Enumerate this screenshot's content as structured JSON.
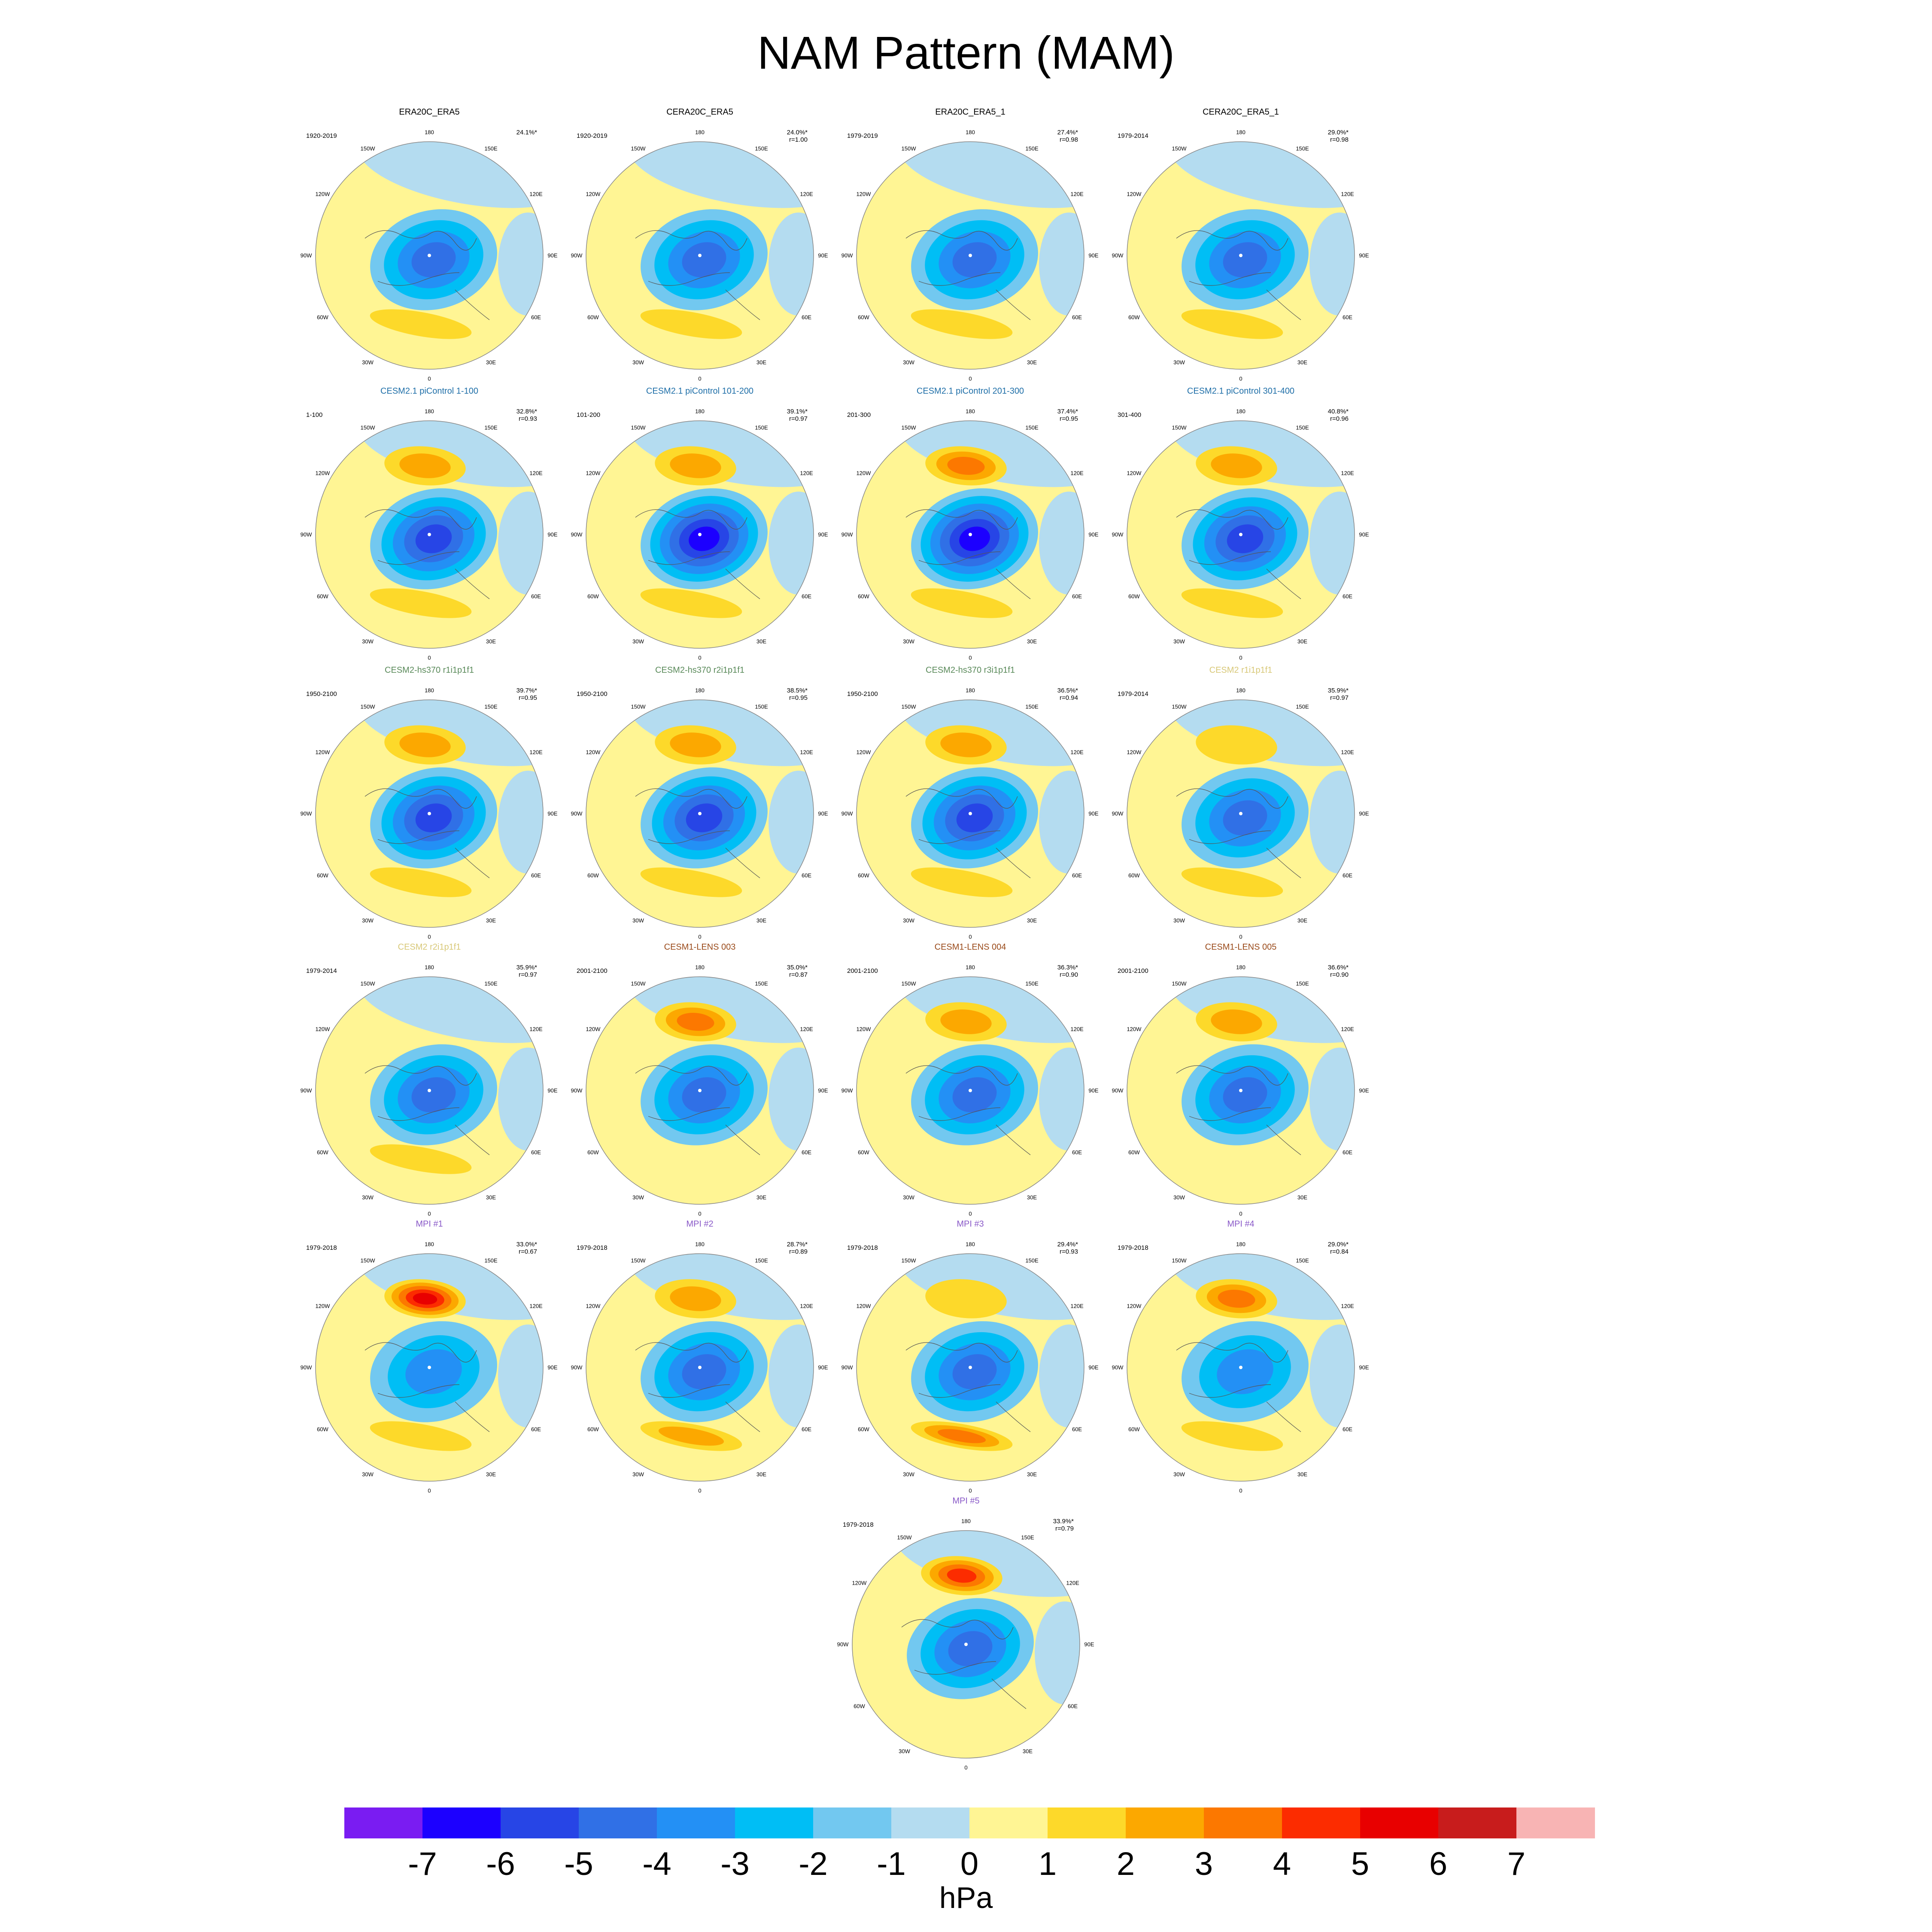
{
  "title": "NAM Pattern (MAM)",
  "units": "hPa",
  "colorbar": {
    "ticks": [
      "-7",
      "-6",
      "-5",
      "-4",
      "-3",
      "-2",
      "-1",
      "0",
      "1",
      "2",
      "3",
      "4",
      "5",
      "6",
      "7"
    ],
    "colors": [
      "#7a1cf2",
      "#1c00ff",
      "#2745e6",
      "#3070e6",
      "#2390f5",
      "#00bef5",
      "#72c8f0",
      "#b4dcf0",
      "#fff594",
      "#fdd92a",
      "#fca800",
      "#fc7800",
      "#fc2c00",
      "#e80000",
      "#c81c1c",
      "#f8b4b4"
    ]
  },
  "lon_labels": [
    "180",
    "150E",
    "120E",
    "90E",
    "60E",
    "30E",
    "0",
    "30W",
    "60W",
    "90W",
    "120W",
    "150W"
  ],
  "panels": [
    {
      "title": "ERA20C_ERA5",
      "title_color": "#000000",
      "period": "1920-2019",
      "pct": "24.1%*",
      "r": ""
    },
    {
      "title": "CERA20C_ERA5",
      "title_color": "#000000",
      "period": "1920-2019",
      "pct": "24.0%*",
      "r": "r=1.00"
    },
    {
      "title": "ERA20C_ERA5_1",
      "title_color": "#000000",
      "period": "1979-2019",
      "pct": "27.4%*",
      "r": "r=0.98"
    },
    {
      "title": "CERA20C_ERA5_1",
      "title_color": "#000000",
      "period": "1979-2014",
      "pct": "29.0%*",
      "r": "r=0.98"
    },
    {
      "title": "CESM2.1 piControl 1-100",
      "title_color": "#1f6fa8",
      "period": "1-100",
      "pct": "32.8%*",
      "r": "r=0.93"
    },
    {
      "title": "CESM2.1 piControl 101-200",
      "title_color": "#1f6fa8",
      "period": "101-200",
      "pct": "39.1%*",
      "r": "r=0.97"
    },
    {
      "title": "CESM2.1 piControl 201-300",
      "title_color": "#1f6fa8",
      "period": "201-300",
      "pct": "37.4%*",
      "r": "r=0.95"
    },
    {
      "title": "CESM2.1 piControl 301-400",
      "title_color": "#1f6fa8",
      "period": "301-400",
      "pct": "40.8%*",
      "r": "r=0.96"
    },
    {
      "title": "CESM2-hs370 r1i1p1f1",
      "title_color": "#5a8a5a",
      "period": "1950-2100",
      "pct": "39.7%*",
      "r": "r=0.95"
    },
    {
      "title": "CESM2-hs370 r2i1p1f1",
      "title_color": "#5a8a5a",
      "period": "1950-2100",
      "pct": "38.5%*",
      "r": "r=0.95"
    },
    {
      "title": "CESM2-hs370 r3i1p1f1",
      "title_color": "#5a8a5a",
      "period": "1950-2100",
      "pct": "36.5%*",
      "r": "r=0.94"
    },
    {
      "title": "CESM2 r1i1p1f1",
      "title_color": "#d8c878",
      "period": "1979-2014",
      "pct": "35.9%*",
      "r": "r=0.97"
    },
    {
      "title": "CESM2 r2i1p1f1",
      "title_color": "#d8c878",
      "period": "1979-2014",
      "pct": "35.9%*",
      "r": "r=0.97"
    },
    {
      "title": "CESM1-LENS 003",
      "title_color": "#9a4a1a",
      "period": "2001-2100",
      "pct": "35.0%*",
      "r": "r=0.87"
    },
    {
      "title": "CESM1-LENS 004",
      "title_color": "#9a4a1a",
      "period": "2001-2100",
      "pct": "36.3%*",
      "r": "r=0.90"
    },
    {
      "title": "CESM1-LENS 005",
      "title_color": "#9a4a1a",
      "period": "2001-2100",
      "pct": "36.6%*",
      "r": "r=0.90"
    },
    {
      "title": "MPI #1",
      "title_color": "#8a5ac8",
      "period": "1979-2018",
      "pct": "33.0%*",
      "r": "r=0.67"
    },
    {
      "title": "MPI #2",
      "title_color": "#8a5ac8",
      "period": "1979-2018",
      "pct": "28.7%*",
      "r": "r=0.89"
    },
    {
      "title": "MPI #3",
      "title_color": "#8a5ac8",
      "period": "1979-2018",
      "pct": "29.4%*",
      "r": "r=0.93"
    },
    {
      "title": "MPI #4",
      "title_color": "#8a5ac8",
      "period": "1979-2018",
      "pct": "29.0%*",
      "r": "r=0.84"
    },
    {
      "title": "MPI #5",
      "title_color": "#8a5ac8",
      "period": "1979-2018",
      "pct": "33.9%*",
      "r": "r=0.79"
    }
  ],
  "chart_data": {
    "type": "heatmap",
    "title": "NAM Pattern (MAM)",
    "colorbar_label": "hPa",
    "colorbar_range": [
      -7,
      7
    ],
    "colorbar_interval": 1,
    "projection": "north polar stereographic",
    "panel_summaries": [
      {
        "panel": "ERA20C_ERA5",
        "arctic_min": -4,
        "pacific_max": 0,
        "atlantic_max": 1
      },
      {
        "panel": "CERA20C_ERA5",
        "arctic_min": -4,
        "pacific_max": 0,
        "atlantic_max": 1
      },
      {
        "panel": "ERA20C_ERA5_1",
        "arctic_min": -4,
        "pacific_max": 0,
        "atlantic_max": 1
      },
      {
        "panel": "CERA20C_ERA5_1",
        "arctic_min": -4,
        "pacific_max": 0,
        "atlantic_max": 1
      },
      {
        "panel": "CESM2.1 piControl 1-100",
        "arctic_min": -5,
        "pacific_max": 2,
        "atlantic_max": 1
      },
      {
        "panel": "CESM2.1 piControl 101-200",
        "arctic_min": -6,
        "pacific_max": 2,
        "atlantic_max": 1
      },
      {
        "panel": "CESM2.1 piControl 201-300",
        "arctic_min": -6,
        "pacific_max": 3,
        "atlantic_max": 1
      },
      {
        "panel": "CESM2.1 piControl 301-400",
        "arctic_min": -5,
        "pacific_max": 2,
        "atlantic_max": 1
      },
      {
        "panel": "CESM2-hs370 r1i1p1f1",
        "arctic_min": -5,
        "pacific_max": 2,
        "atlantic_max": 1
      },
      {
        "panel": "CESM2-hs370 r2i1p1f1",
        "arctic_min": -5,
        "pacific_max": 2,
        "atlantic_max": 1
      },
      {
        "panel": "CESM2-hs370 r3i1p1f1",
        "arctic_min": -5,
        "pacific_max": 2,
        "atlantic_max": 1
      },
      {
        "panel": "CESM2 r1i1p1f1",
        "arctic_min": -4,
        "pacific_max": 1,
        "atlantic_max": 1
      },
      {
        "panel": "CESM2 r2i1p1f1",
        "arctic_min": -4,
        "pacific_max": 0,
        "atlantic_max": 1
      },
      {
        "panel": "CESM1-LENS 003",
        "arctic_min": -4,
        "pacific_max": 3,
        "atlantic_max": 0
      },
      {
        "panel": "CESM1-LENS 004",
        "arctic_min": -4,
        "pacific_max": 2,
        "atlantic_max": 0
      },
      {
        "panel": "CESM1-LENS 005",
        "arctic_min": -4,
        "pacific_max": 2,
        "atlantic_max": 0
      },
      {
        "panel": "MPI #1",
        "arctic_min": -3,
        "pacific_max": 5,
        "atlantic_max": 1
      },
      {
        "panel": "MPI #2",
        "arctic_min": -4,
        "pacific_max": 2,
        "atlantic_max": 2
      },
      {
        "panel": "MPI #3",
        "arctic_min": -4,
        "pacific_max": 1,
        "atlantic_max": 3
      },
      {
        "panel": "MPI #4",
        "arctic_min": -3,
        "pacific_max": 3,
        "atlantic_max": 1
      },
      {
        "panel": "MPI #5",
        "arctic_min": -4,
        "pacific_max": 4,
        "atlantic_max": 0
      }
    ]
  }
}
